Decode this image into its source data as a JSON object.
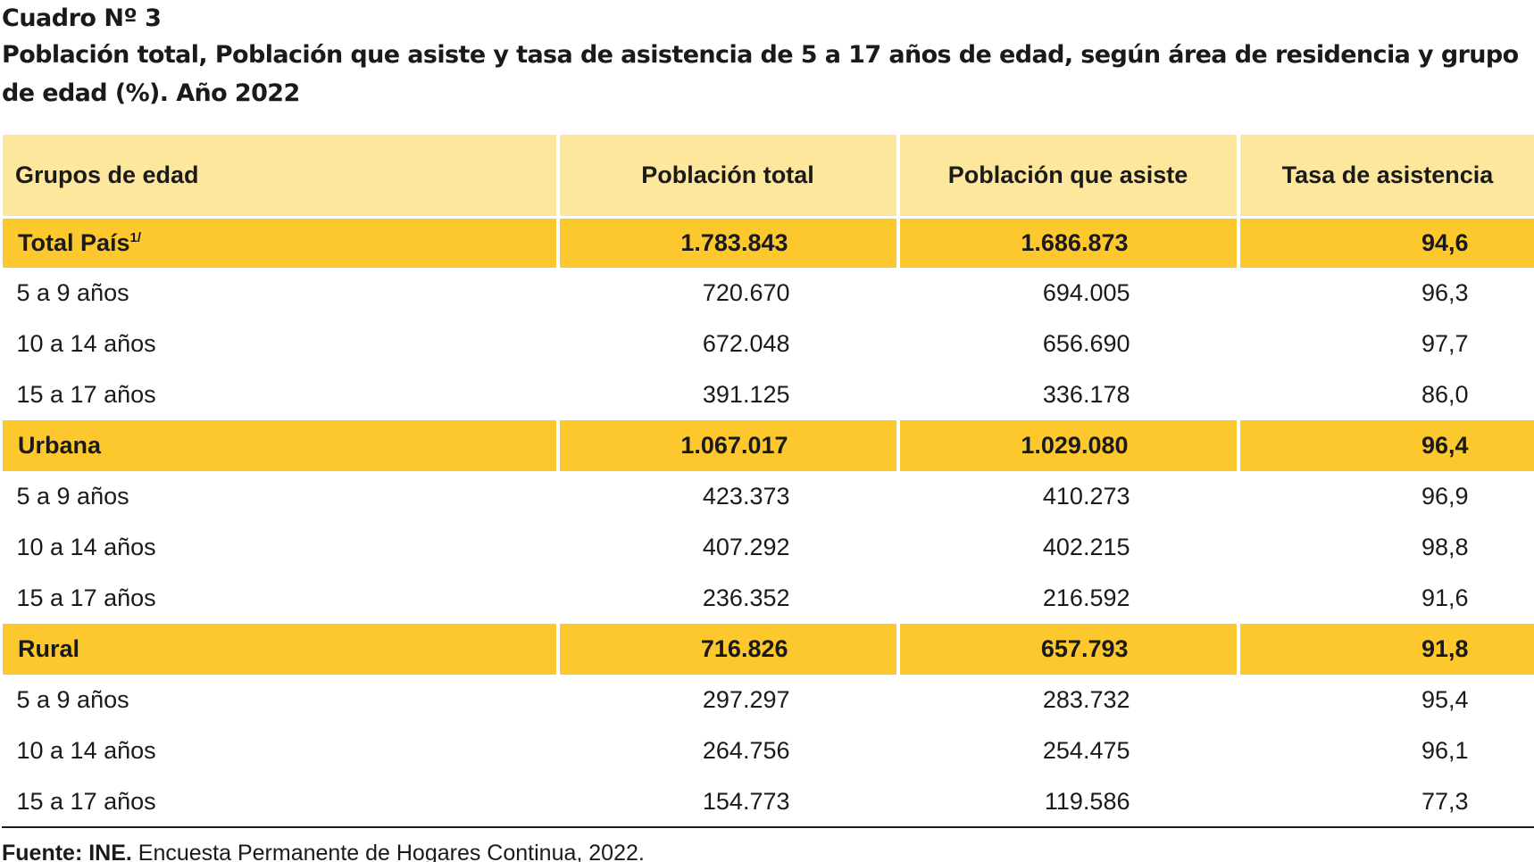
{
  "header": {
    "cuadro": "Cuadro Nº 3",
    "title_line1": "Población total, Población que asiste y tasa de asistencia de 5 a 17 años de edad, según área de residencia y grupo",
    "title_line2": "de edad (%). Año 2022"
  },
  "table": {
    "columns": [
      "Grupos de edad",
      "Población total",
      "Población que asiste",
      "Tasa de asistencia"
    ],
    "rows": [
      {
        "label": "Total País",
        "footnote": "1/",
        "total": "1.783.843",
        "asiste": "1.686.873",
        "tasa": "94,6",
        "group": true
      },
      {
        "label": "5 a 9 años",
        "total": "720.670",
        "asiste": "694.005",
        "tasa": "96,3",
        "group": false
      },
      {
        "label": "10 a 14 años",
        "total": "672.048",
        "asiste": "656.690",
        "tasa": "97,7",
        "group": false
      },
      {
        "label": "15 a 17 años",
        "total": "391.125",
        "asiste": "336.178",
        "tasa": "86,0",
        "group": false
      },
      {
        "label": "Urbana",
        "total": "1.067.017",
        "asiste": "1.029.080",
        "tasa": "96,4",
        "group": true
      },
      {
        "label": "5 a 9 años",
        "total": "423.373",
        "asiste": "410.273",
        "tasa": "96,9",
        "group": false
      },
      {
        "label": "10 a 14 años",
        "total": "407.292",
        "asiste": "402.215",
        "tasa": "98,8",
        "group": false
      },
      {
        "label": "15 a 17 años",
        "total": "236.352",
        "asiste": "216.592",
        "tasa": "91,6",
        "group": false
      },
      {
        "label": "Rural",
        "total": "716.826",
        "asiste": "657.793",
        "tasa": "91,8",
        "group": true
      },
      {
        "label": "5 a 9 años",
        "total": "297.297",
        "asiste": "283.732",
        "tasa": "95,4",
        "group": false
      },
      {
        "label": "10 a 14 años",
        "total": "264.756",
        "asiste": "254.475",
        "tasa": "96,1",
        "group": false
      },
      {
        "label": "15 a 17 años",
        "total": "154.773",
        "asiste": "119.586",
        "tasa": "77,3",
        "group": false
      }
    ]
  },
  "source": {
    "label": "Fuente: INE.",
    "text": " Encuesta Permanente de Hogares Continua, 2022."
  },
  "colors": {
    "header_bg": "#fde79c",
    "group_row_bg": "#fcc82d"
  }
}
